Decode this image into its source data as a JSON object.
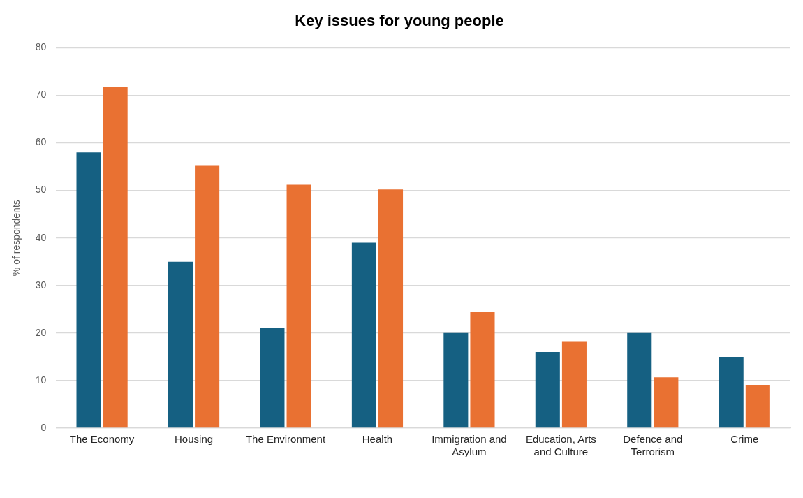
{
  "chart_data": {
    "type": "bar",
    "title": "Key issues for young people",
    "ylabel": "% of respondents",
    "categories": [
      "The Economy",
      "Housing",
      "The Environment",
      "Health",
      "Immigration and Asylum",
      "Education, Arts and Culture",
      "Defence and Terrorism",
      "Crime"
    ],
    "series": [
      {
        "color": "#156082",
        "values": [
          58,
          35,
          21,
          39,
          20,
          16,
          20,
          15
        ]
      },
      {
        "color": "#e97132",
        "values": [
          71.7,
          55.3,
          51.2,
          50.2,
          24.5,
          18.3,
          10.7,
          9.1
        ]
      }
    ],
    "ylim": [
      0,
      80
    ],
    "yticks": [
      0,
      10,
      20,
      30,
      40,
      50,
      60,
      70,
      80
    ],
    "grid": "y",
    "legend": false
  }
}
